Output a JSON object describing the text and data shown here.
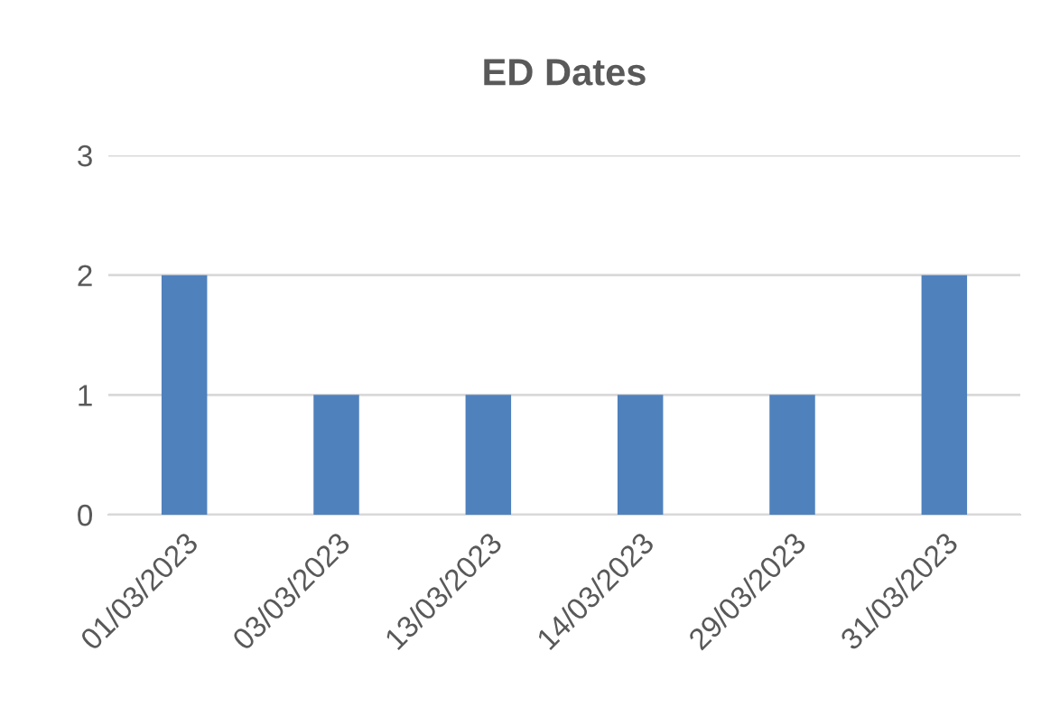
{
  "chart_data": {
    "type": "bar",
    "title": "ED Dates",
    "categories": [
      "01/03/2023",
      "03/03/2023",
      "13/03/2023",
      "14/03/2023",
      "29/03/2023",
      "31/03/2023"
    ],
    "values": [
      2,
      1,
      1,
      1,
      1,
      2
    ],
    "color": "#4f81bd",
    "ylim": [
      0,
      3
    ],
    "yticks": [
      0,
      1,
      2,
      3
    ],
    "grid": "y",
    "legend": false
  }
}
